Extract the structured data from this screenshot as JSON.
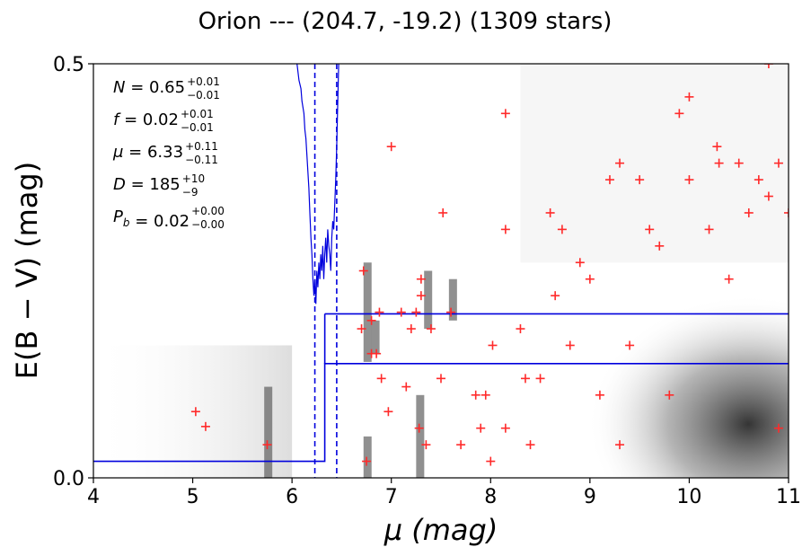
{
  "chart_data": {
    "type": "scatter",
    "title": "Orion --- (204.7, -19.2) (1309 stars)",
    "xlabel": "μ (mag)",
    "ylabel": "E(B − V) (mag)",
    "xlim": [
      4,
      11
    ],
    "ylim": [
      0.0,
      0.5
    ],
    "x_ticks": [
      4,
      5,
      6,
      7,
      8,
      9,
      10,
      11
    ],
    "x_tick_labels": [
      "4",
      "5",
      "6",
      "7",
      "8",
      "9",
      "10",
      "11"
    ],
    "y_ticks": [
      0.0,
      0.5
    ],
    "y_tick_labels": [
      "0.0",
      "0.5"
    ],
    "colors": {
      "stars": "#ff2a2a",
      "model": "#0000dd",
      "background_dark": "#202020"
    },
    "annotations": [
      {
        "sym": "N",
        "val": "0.65",
        "sup": "+0.01",
        "sub": "−0.01"
      },
      {
        "sym": "f",
        "val": "0.02",
        "sup": "+0.01",
        "sub": "−0.01"
      },
      {
        "sym": "μ",
        "val": "6.33",
        "sup": "+0.11",
        "sub": "−0.11"
      },
      {
        "sym": "D",
        "val": "185",
        "sup": "+10",
        "sub": "−9"
      },
      {
        "sym": "P_b",
        "val": "0.02",
        "sup": "+0.00",
        "sub": "−0.00"
      }
    ],
    "model_step_lower": [
      [
        4.0,
        0.02
      ],
      [
        6.33,
        0.02
      ],
      [
        6.33,
        0.138
      ],
      [
        11.0,
        0.138
      ]
    ],
    "model_step_upper": [
      [
        6.33,
        0.198
      ],
      [
        11.0,
        0.198
      ]
    ],
    "distance_bounds": [
      6.23,
      6.45
    ],
    "probability_curve": [
      [
        6.05,
        0.5
      ],
      [
        6.07,
        0.48
      ],
      [
        6.09,
        0.47
      ],
      [
        6.1,
        0.455
      ],
      [
        6.12,
        0.44
      ],
      [
        6.13,
        0.42
      ],
      [
        6.14,
        0.41
      ],
      [
        6.15,
        0.39
      ],
      [
        6.16,
        0.37
      ],
      [
        6.17,
        0.35
      ],
      [
        6.18,
        0.32
      ],
      [
        6.19,
        0.29
      ],
      [
        6.2,
        0.27
      ],
      [
        6.21,
        0.24
      ],
      [
        6.22,
        0.22
      ],
      [
        6.23,
        0.24
      ],
      [
        6.24,
        0.21
      ],
      [
        6.25,
        0.25
      ],
      [
        6.26,
        0.23
      ],
      [
        6.27,
        0.26
      ],
      [
        6.28,
        0.24
      ],
      [
        6.29,
        0.27
      ],
      [
        6.3,
        0.25
      ],
      [
        6.31,
        0.28
      ],
      [
        6.32,
        0.24
      ],
      [
        6.33,
        0.27
      ],
      [
        6.34,
        0.29
      ],
      [
        6.35,
        0.26
      ],
      [
        6.36,
        0.3
      ],
      [
        6.37,
        0.28
      ],
      [
        6.38,
        0.27
      ],
      [
        6.39,
        0.25
      ],
      [
        6.4,
        0.29
      ],
      [
        6.41,
        0.31
      ],
      [
        6.42,
        0.3
      ],
      [
        6.43,
        0.33
      ],
      [
        6.44,
        0.36
      ],
      [
        6.45,
        0.4
      ],
      [
        6.46,
        0.45
      ],
      [
        6.47,
        0.5
      ]
    ],
    "stars": [
      [
        5.03,
        0.08
      ],
      [
        5.13,
        0.062
      ],
      [
        5.75,
        0.04
      ],
      [
        6.75,
        0.02
      ],
      [
        6.8,
        0.19
      ],
      [
        6.8,
        0.15
      ],
      [
        6.97,
        0.08
      ],
      [
        6.7,
        0.18
      ],
      [
        6.72,
        0.25
      ],
      [
        6.85,
        0.15
      ],
      [
        6.88,
        0.2
      ],
      [
        6.9,
        0.12
      ],
      [
        7.0,
        0.4
      ],
      [
        7.1,
        0.2
      ],
      [
        7.15,
        0.11
      ],
      [
        7.2,
        0.18
      ],
      [
        7.25,
        0.2
      ],
      [
        7.3,
        0.24
      ],
      [
        7.3,
        0.22
      ],
      [
        7.28,
        0.06
      ],
      [
        7.35,
        0.04
      ],
      [
        7.4,
        0.18
      ],
      [
        7.52,
        0.32
      ],
      [
        7.6,
        0.2
      ],
      [
        7.5,
        0.12
      ],
      [
        7.7,
        0.04
      ],
      [
        7.85,
        0.1
      ],
      [
        7.9,
        0.06
      ],
      [
        7.95,
        0.1
      ],
      [
        8.0,
        0.02
      ],
      [
        8.02,
        0.16
      ],
      [
        8.15,
        0.44
      ],
      [
        8.15,
        0.3
      ],
      [
        8.15,
        0.06
      ],
      [
        8.3,
        0.18
      ],
      [
        8.35,
        0.12
      ],
      [
        8.4,
        0.04
      ],
      [
        8.5,
        0.12
      ],
      [
        8.6,
        0.32
      ],
      [
        8.65,
        0.22
      ],
      [
        8.72,
        0.3
      ],
      [
        8.8,
        0.16
      ],
      [
        8.9,
        0.26
      ],
      [
        9.0,
        0.24
      ],
      [
        9.1,
        0.1
      ],
      [
        9.2,
        0.36
      ],
      [
        9.3,
        0.38
      ],
      [
        9.3,
        0.04
      ],
      [
        9.4,
        0.16
      ],
      [
        9.5,
        0.36
      ],
      [
        9.6,
        0.3
      ],
      [
        9.7,
        0.28
      ],
      [
        9.8,
        0.1
      ],
      [
        9.9,
        0.44
      ],
      [
        10.0,
        0.46
      ],
      [
        10.0,
        0.36
      ],
      [
        10.2,
        0.3
      ],
      [
        10.28,
        0.4
      ],
      [
        10.3,
        0.38
      ],
      [
        10.4,
        0.24
      ],
      [
        10.5,
        0.38
      ],
      [
        10.6,
        0.32
      ],
      [
        10.7,
        0.36
      ],
      [
        10.8,
        0.5
      ],
      [
        10.8,
        0.34
      ],
      [
        10.9,
        0.38
      ],
      [
        11.0,
        0.32
      ],
      [
        10.9,
        0.06
      ]
    ],
    "dense_region": {
      "x_range": [
        8.3,
        11.0
      ],
      "y_range": [
        0.0,
        0.26
      ]
    }
  }
}
